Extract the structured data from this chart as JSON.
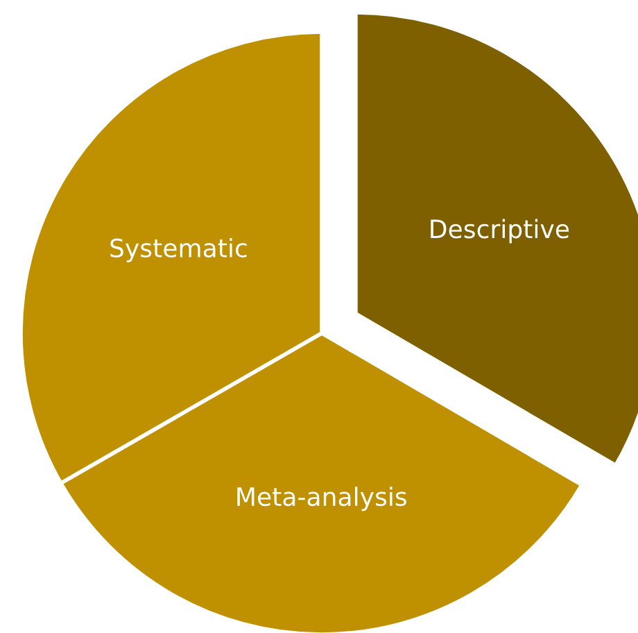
{
  "chart_data": {
    "type": "pie",
    "categories": [
      "Descriptive",
      "Meta-analysis",
      "Systematic"
    ],
    "values": [
      33.4,
      33.3,
      33.3
    ],
    "colors": [
      "#7f6000",
      "#bf9000",
      "#bf9000"
    ]
  }
}
